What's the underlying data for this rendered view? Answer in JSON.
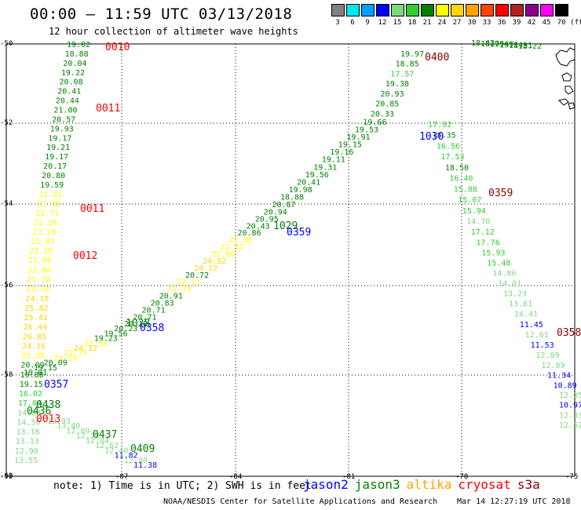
{
  "header": {
    "title": "00:00 – 11:59 UTC 03/13/2018",
    "subtitle": "12 hour collection of altimeter wave heights"
  },
  "color_scale": {
    "unit": "(ft)",
    "bins": [
      {
        "label": "3",
        "color": "#808080"
      },
      {
        "label": "6",
        "color": "#00e5ee"
      },
      {
        "label": "9",
        "color": "#00a0ff"
      },
      {
        "label": "12",
        "color": "#0000ff"
      },
      {
        "label": "15",
        "color": "#7fd87f"
      },
      {
        "label": "18",
        "color": "#32cd32"
      },
      {
        "label": "21",
        "color": "#008000"
      },
      {
        "label": "24",
        "color": "#ffff00"
      },
      {
        "label": "27",
        "color": "#ffd700"
      },
      {
        "label": "30",
        "color": "#ffa500"
      },
      {
        "label": "33",
        "color": "#ff4500"
      },
      {
        "label": "36",
        "color": "#ff0000"
      },
      {
        "label": "39",
        "color": "#b22222"
      },
      {
        "label": "42",
        "color": "#8b008b"
      },
      {
        "label": "45",
        "color": "#ff00ff"
      },
      {
        "label": "70",
        "color": "#000000"
      }
    ]
  },
  "map": {
    "lat_labels": [
      "-50",
      "-52",
      "-54",
      "-56",
      "-58",
      "-60"
    ],
    "lon_labels": [
      "-90",
      "-87",
      "-84",
      "-81",
      "-78",
      "-75"
    ],
    "land_shape": "coastline-islands"
  },
  "time_labels": [
    {
      "text": "0010",
      "color": "#ff0000"
    },
    {
      "text": "0011",
      "color": "#ff0000"
    },
    {
      "text": "0011",
      "color": "#ff0000"
    },
    {
      "text": "0012",
      "color": "#ff0000"
    },
    {
      "text": "0013",
      "color": "#ff0000"
    },
    {
      "text": "0400",
      "color": "#8b0000"
    },
    {
      "text": "0359",
      "color": "#8b0000"
    },
    {
      "text": "0358",
      "color": "#8b0000"
    },
    {
      "text": "1030",
      "color": "#0000ff"
    },
    {
      "text": "1029",
      "color": "#008000"
    },
    {
      "text": "0359",
      "color": "#0000ff"
    },
    {
      "text": "1028",
      "color": "#008000"
    },
    {
      "text": "0358",
      "color": "#0000ff"
    },
    {
      "text": "0357",
      "color": "#0000ff"
    },
    {
      "text": "0438",
      "color": "#008000"
    },
    {
      "text": "0436",
      "color": "#008000"
    },
    {
      "text": "0437",
      "color": "#008000"
    },
    {
      "text": "0409",
      "color": "#008000"
    }
  ],
  "tracks": [
    {
      "name": "cryosat-west",
      "values": [
        "19.02",
        "18.88",
        "20.04",
        "19.22",
        "20.08",
        "20.41",
        "20.44",
        "21.00",
        "20.57",
        "19.93",
        "19.17",
        "19.21",
        "19.17",
        "20.17",
        "20.80",
        "19.59",
        "21.81",
        "21.35",
        "21.71",
        "22.26",
        "23.28",
        "21.43",
        "23.20",
        "21.98",
        "22.84",
        "21.78",
        "23.28",
        "24.18",
        "25.82",
        "25.41",
        "26.44",
        "26.85",
        "24.16",
        "22.35",
        "20.09",
        "19.88",
        "19.15",
        "16.02",
        "17.04",
        "14.88",
        "14.50",
        "13.18",
        "13.13",
        "12.90",
        "13.55"
      ]
    },
    {
      "name": "jason3-diagonal",
      "values": [
        "19.97",
        "18.85",
        "17.57",
        "19.38",
        "20.93",
        "20.85",
        "20.33",
        "19.66",
        "19.53",
        "19.91",
        "19.15",
        "19.16",
        "19.11",
        "19.31",
        "19.56",
        "20.41",
        "19.98",
        "18.88",
        "20.87",
        "20.94",
        "20.95",
        "20.43",
        "20.86",
        "21.85",
        "22.32",
        "22.86",
        "24.92",
        "24.12",
        "20.72",
        "22.11",
        "22.19",
        "20.91",
        "20.83",
        "20.71",
        "20.71",
        "20.19",
        "20.23",
        "19.56",
        "19.23",
        "22.53",
        "24.12",
        "22.75",
        "23.15",
        "20.09",
        "19.15",
        "19.01"
      ]
    },
    {
      "name": "jason3-south",
      "values": [
        "17.92",
        "18.35",
        "16.56",
        "17.53",
        "18.50",
        "16.40",
        "15.88",
        "15.07",
        "15.94",
        "14.70",
        "17.12",
        "17.76",
        "15.93",
        "15.48",
        "14.86",
        "14.01",
        "13.23",
        "13.81",
        "14.41",
        "11.45",
        "12.61",
        "11.53",
        "12.89",
        "12.09",
        "11.34",
        "10.89",
        "12.05",
        "10.97",
        "12.33",
        "12.52"
      ]
    },
    {
      "name": "jason3-bottom",
      "values": [
        "13.93",
        "13.40",
        "12.09",
        "12.73",
        "12.84",
        "12.62",
        "12.40",
        "11.82",
        "12.40",
        "11.38"
      ]
    },
    {
      "name": "northeast",
      "values": [
        "18.42",
        "18.79",
        "19.49",
        "19.14",
        "18.31",
        "18.22"
      ]
    }
  ],
  "footer": {
    "note": "note: 1) Time is in UTC; 2) SWH is in feet",
    "satellites": [
      {
        "name": "jason2",
        "color": "#0000ff"
      },
      {
        "name": "jason3",
        "color": "#008000"
      },
      {
        "name": "altika",
        "color": "#ffa500"
      },
      {
        "name": "cryosat",
        "color": "#ff0000"
      },
      {
        "name": "s3a",
        "color": "#8b0000"
      }
    ],
    "credit": "NOAA/NESDIS Center for Satellite Applications and Research",
    "timestamp": "Mar 14 12:27:19 UTC 2018"
  }
}
